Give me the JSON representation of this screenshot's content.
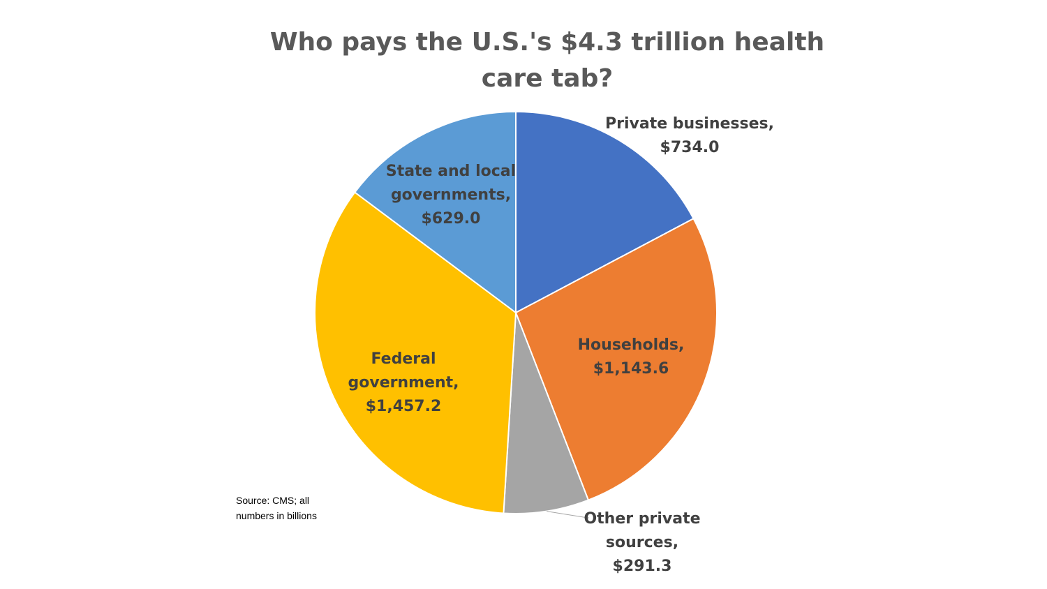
{
  "chart_data": {
    "type": "pie",
    "title_lines": [
      "Who pays the U.S.'s $4.3 trillion health",
      "care tab?"
    ],
    "slices": [
      {
        "label_lines": [
          "Private businesses,",
          "$734.0"
        ],
        "value": 734.0,
        "color": "#4472C4"
      },
      {
        "label_lines": [
          "Households,",
          "$1,143.6"
        ],
        "value": 1143.6,
        "color": "#ED7D31"
      },
      {
        "label_lines": [
          "Other private",
          "sources,",
          "$291.3"
        ],
        "value": 291.3,
        "color": "#A5A5A5"
      },
      {
        "label_lines": [
          "Federal",
          "government,",
          "$1,457.2"
        ],
        "value": 1457.2,
        "color": "#FFC000"
      },
      {
        "label_lines": [
          "State and local",
          "governments,",
          "$629.0"
        ],
        "value": 629.0,
        "color": "#5B9BD5"
      }
    ],
    "legend": "none",
    "note_lines": [
      "Source: CMS; all",
      "numbers in billions"
    ]
  }
}
